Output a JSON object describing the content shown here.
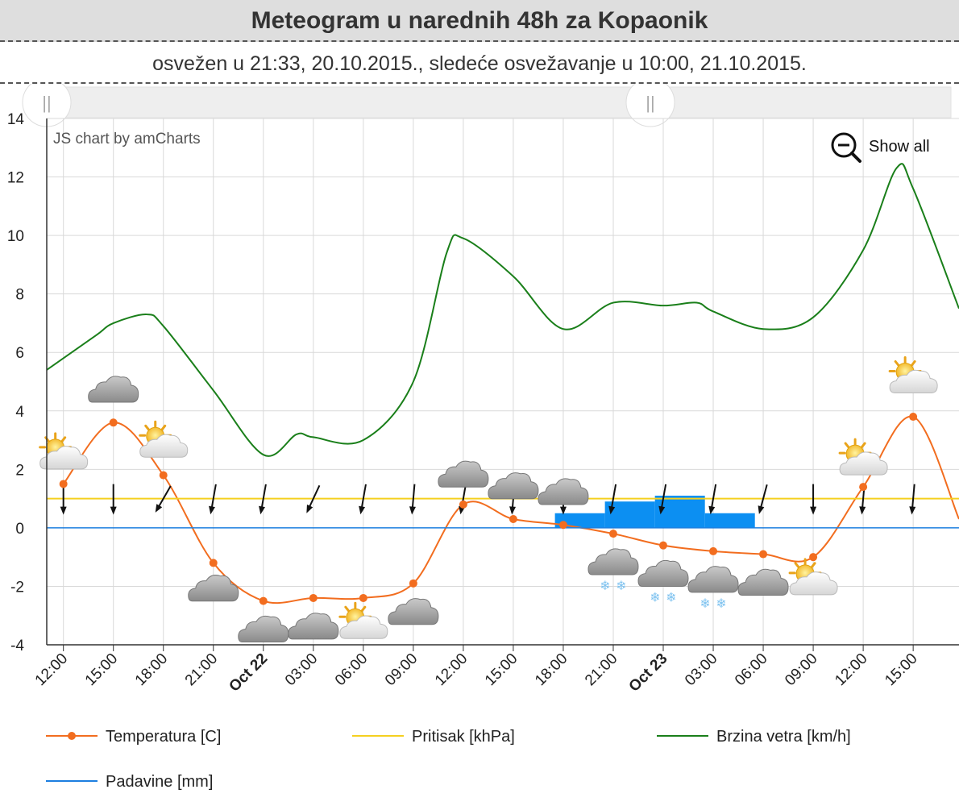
{
  "header": {
    "title": "Meteogram u narednih 48h za Kopaonik",
    "subtitle": "osvežen u 21:33, 20.10.2015., sledeće osvežavanje u 10:00, 21.10.2015."
  },
  "watermark": "JS chart by amCharts",
  "show_all_label": "Show all",
  "chart_data": {
    "type": "line",
    "ylim": [
      -4,
      14
    ],
    "yticks": [
      "-4",
      "-2",
      "0",
      "2",
      "4",
      "6",
      "8",
      "10",
      "12",
      "14"
    ],
    "x_start": "2015-10-21 11:00",
    "x_end": "2015-10-23 17:45",
    "x_ticks": [
      "12:00",
      "15:00",
      "18:00",
      "21:00",
      "Oct 22",
      "03:00",
      "06:00",
      "09:00",
      "12:00",
      "15:00",
      "18:00",
      "21:00",
      "Oct 23",
      "03:00",
      "06:00",
      "09:00",
      "12:00",
      "15:00"
    ],
    "grid": true,
    "legend_placement": "bottom",
    "colors": {
      "temperature": "#f26d1f",
      "pressure": "#f5d020",
      "wind": "#1a7f1a",
      "precipitation": "#1d7fe0",
      "precip_bars": "#0c8ff2"
    },
    "series": [
      {
        "name": "Temperatura [C]",
        "key": "temperature",
        "x": [
          "2015-10-21 12:00",
          "2015-10-21 15:00",
          "2015-10-21 18:00",
          "2015-10-21 21:00",
          "2015-10-22 00:00",
          "2015-10-22 03:00",
          "2015-10-22 06:00",
          "2015-10-22 09:00",
          "2015-10-22 12:00",
          "2015-10-22 15:00",
          "2015-10-22 18:00",
          "2015-10-22 21:00",
          "2015-10-23 00:00",
          "2015-10-23 03:00",
          "2015-10-23 06:00",
          "2015-10-23 09:00",
          "2015-10-23 12:00",
          "2015-10-23 15:00"
        ],
        "values": [
          1.5,
          3.6,
          1.8,
          -1.2,
          -2.5,
          -2.4,
          -2.4,
          -1.9,
          0.8,
          0.3,
          0.1,
          -0.2,
          -0.6,
          -0.8,
          -0.9,
          -1.0,
          1.4,
          3.8
        ],
        "end": [
          "2015-10-23 17:45",
          0.3
        ]
      },
      {
        "name": "Pritisak [khPa]",
        "key": "pressure",
        "x": [
          "2015-10-21 11:00",
          "2015-10-23 17:45"
        ],
        "values": [
          1.0,
          1.0
        ]
      },
      {
        "name": "Brzina vetra [km/h]",
        "key": "wind",
        "x": [
          "2015-10-21 11:00",
          "2015-10-21 12:00",
          "2015-10-21 14:00",
          "2015-10-21 15:00",
          "2015-10-21 17:00",
          "2015-10-21 18:00",
          "2015-10-21 21:00",
          "2015-10-22 00:00",
          "2015-10-22 02:00",
          "2015-10-22 03:00",
          "2015-10-22 06:00",
          "2015-10-22 09:00",
          "2015-10-22 11:00",
          "2015-10-22 12:00",
          "2015-10-22 15:00",
          "2015-10-22 18:00",
          "2015-10-22 21:00",
          "2015-10-23 00:00",
          "2015-10-23 02:00",
          "2015-10-23 03:00",
          "2015-10-23 06:00",
          "2015-10-23 09:00",
          "2015-10-23 12:00",
          "2015-10-23 14:00",
          "2015-10-23 15:00",
          "2015-10-23 17:45"
        ],
        "values": [
          5.4,
          5.8,
          6.6,
          7.0,
          7.3,
          6.9,
          4.7,
          2.5,
          3.2,
          3.1,
          3.0,
          5.0,
          9.4,
          9.9,
          8.6,
          6.8,
          7.7,
          7.6,
          7.7,
          7.4,
          6.8,
          7.2,
          9.5,
          12.3,
          11.6,
          7.5
        ]
      },
      {
        "name": "Padavine [mm]",
        "key": "precipitation",
        "x": [
          "2015-10-21 11:00",
          "2015-10-23 17:45"
        ],
        "values": [
          0,
          0
        ]
      }
    ],
    "precip_bars": [
      {
        "start": "2015-10-22 17:30",
        "end": "2015-10-22 20:30",
        "value": 0.5
      },
      {
        "start": "2015-10-22 20:30",
        "end": "2015-10-22 23:30",
        "value": 0.9
      },
      {
        "start": "2015-10-22 23:30",
        "end": "2015-10-23 02:30",
        "value": 1.1
      },
      {
        "start": "2015-10-23 02:30",
        "end": "2015-10-23 05:30",
        "value": 0.5
      }
    ],
    "wind_arrows": [
      {
        "x": "2015-10-21 12:00",
        "dir": 0
      },
      {
        "x": "2015-10-21 15:00",
        "dir": 0
      },
      {
        "x": "2015-10-21 18:00",
        "dir": 30
      },
      {
        "x": "2015-10-21 21:00",
        "dir": 10
      },
      {
        "x": "2015-10-22 00:00",
        "dir": 10
      },
      {
        "x": "2015-10-22 03:00",
        "dir": 25
      },
      {
        "x": "2015-10-22 06:00",
        "dir": 10
      },
      {
        "x": "2015-10-22 09:00",
        "dir": 5
      },
      {
        "x": "2015-10-22 12:00",
        "dir": 10
      },
      {
        "x": "2015-10-22 15:00",
        "dir": 5
      },
      {
        "x": "2015-10-22 18:00",
        "dir": 0
      },
      {
        "x": "2015-10-22 21:00",
        "dir": 10
      },
      {
        "x": "2015-10-23 00:00",
        "dir": 10
      },
      {
        "x": "2015-10-23 03:00",
        "dir": 10
      },
      {
        "x": "2015-10-23 06:00",
        "dir": 15
      },
      {
        "x": "2015-10-23 09:00",
        "dir": 0
      },
      {
        "x": "2015-10-23 12:00",
        "dir": 5
      },
      {
        "x": "2015-10-23 15:00",
        "dir": 5
      }
    ],
    "weather_icons": [
      {
        "x": "2015-10-21 12:00",
        "y": 2.4,
        "icon": "partly-sunny-icon"
      },
      {
        "x": "2015-10-21 15:00",
        "y": 4.6,
        "icon": "cloud-icon"
      },
      {
        "x": "2015-10-21 18:00",
        "y": 2.8,
        "icon": "partly-sunny-icon"
      },
      {
        "x": "2015-10-21 21:00",
        "y": -2.2,
        "icon": "cloud-icon"
      },
      {
        "x": "2015-10-22 00:00",
        "y": -3.6,
        "icon": "cloud-icon"
      },
      {
        "x": "2015-10-22 03:00",
        "y": -3.5,
        "icon": "cloud-icon"
      },
      {
        "x": "2015-10-22 06:00",
        "y": -3.4,
        "icon": "partly-sunny-icon"
      },
      {
        "x": "2015-10-22 09:00",
        "y": -3.0,
        "icon": "cloud-icon"
      },
      {
        "x": "2015-10-22 12:00",
        "y": 1.7,
        "icon": "cloud-icon"
      },
      {
        "x": "2015-10-22 15:00",
        "y": 1.3,
        "icon": "cloud-icon"
      },
      {
        "x": "2015-10-22 18:00",
        "y": 1.1,
        "icon": "cloud-icon"
      },
      {
        "x": "2015-10-22 21:00",
        "y": -1.3,
        "icon": "snow-cloud-icon"
      },
      {
        "x": "2015-10-23 00:00",
        "y": -1.7,
        "icon": "snow-cloud-icon"
      },
      {
        "x": "2015-10-23 03:00",
        "y": -1.9,
        "icon": "snow-cloud-icon"
      },
      {
        "x": "2015-10-23 06:00",
        "y": -2.0,
        "icon": "cloud-icon"
      },
      {
        "x": "2015-10-23 09:00",
        "y": -1.9,
        "icon": "partly-sunny-icon"
      },
      {
        "x": "2015-10-23 12:00",
        "y": 2.2,
        "icon": "partly-sunny-icon"
      },
      {
        "x": "2015-10-23 15:00",
        "y": 5.0,
        "icon": "partly-sunny-icon"
      }
    ]
  }
}
